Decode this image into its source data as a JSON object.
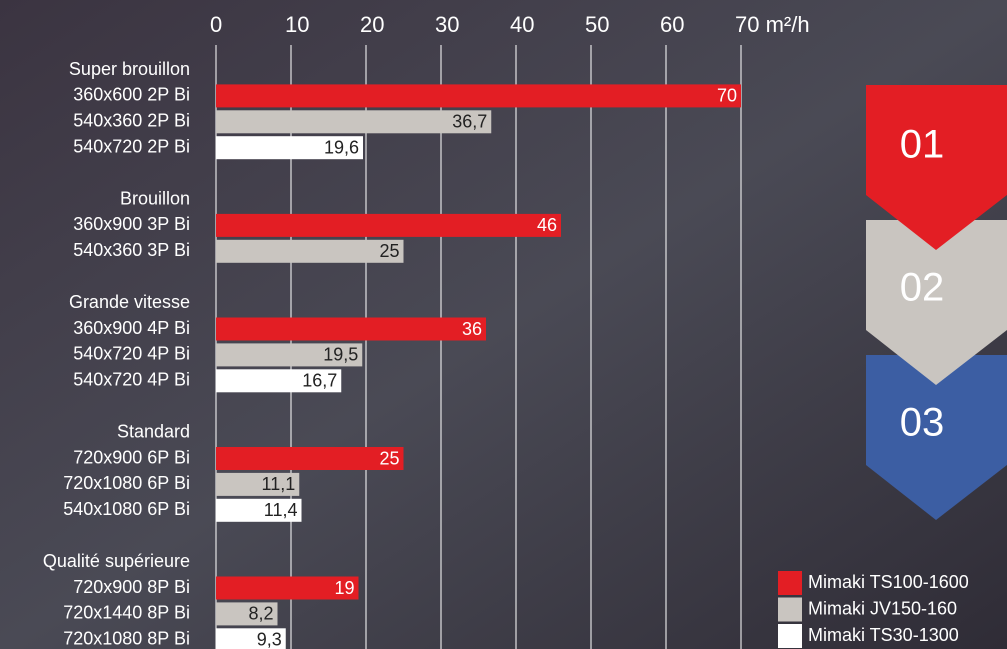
{
  "chart_data": {
    "type": "bar",
    "orientation": "horizontal",
    "xlim": [
      0,
      70
    ],
    "xticks": [
      0,
      10,
      20,
      30,
      40,
      50,
      60,
      {
        "value": 70,
        "label": "70 m²/h"
      }
    ],
    "grid": true,
    "legend": "bottom-right",
    "series": [
      {
        "name": "Mimaki TS100-1600",
        "color": "#e31e24"
      },
      {
        "name": "Mimaki JV150-160",
        "color": "#c9c5c0"
      },
      {
        "name": "Mimaki TS30-1300",
        "color": "#ffffff"
      }
    ],
    "groups": [
      {
        "name": "Super brouillon",
        "categories": [
          "360x600 2P Bi",
          "540x360 2P Bi",
          "540x720 2P Bi"
        ],
        "values": [
          70,
          36.7,
          19.6
        ],
        "value_labels": [
          "70",
          "36,7",
          "19,6"
        ]
      },
      {
        "name": "Brouillon",
        "categories": [
          "360x900 3P Bi",
          "540x360 3P Bi"
        ],
        "values": [
          46,
          25
        ],
        "value_labels": [
          "46",
          "25"
        ]
      },
      {
        "name": "Grande vitesse",
        "categories": [
          "360x900 4P Bi",
          "540x720 4P Bi",
          "540x720 4P Bi"
        ],
        "values": [
          36,
          19.5,
          16.7
        ],
        "value_labels": [
          "36",
          "19,5",
          "16,7"
        ]
      },
      {
        "name": "Standard",
        "categories": [
          "720x900 6P Bi",
          "720x1080 6P Bi",
          "540x1080 6P Bi"
        ],
        "values": [
          25,
          11.1,
          11.4
        ],
        "value_labels": [
          "25",
          "11,1",
          "11,4"
        ]
      },
      {
        "name": "Qualité supérieure",
        "categories": [
          "720x900 8P Bi",
          "720x1440 8P Bi",
          "720x1080 8P Bi"
        ],
        "values": [
          19,
          8.2,
          9.3
        ],
        "value_labels": [
          "19",
          "8,2",
          "9,3"
        ]
      }
    ]
  },
  "steps": [
    "01",
    "02",
    "03"
  ]
}
